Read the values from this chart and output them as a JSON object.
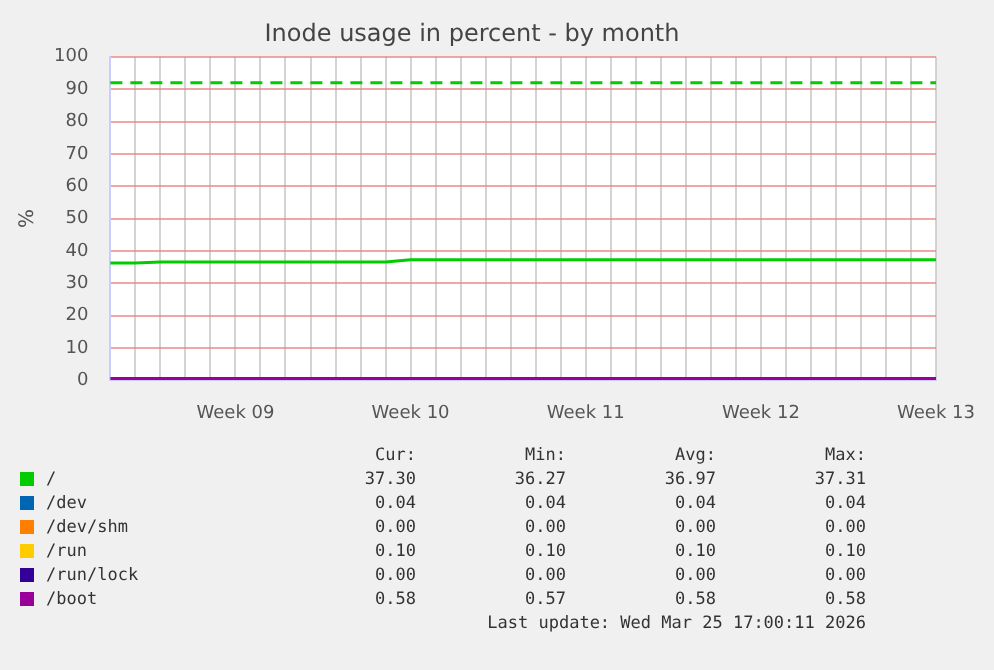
{
  "chart_data": {
    "type": "line",
    "title": "Inode usage in percent - by month",
    "ylabel": "%",
    "categories": [
      null,
      null,
      null,
      null,
      null,
      "Week 09",
      null,
      null,
      null,
      null,
      null,
      null,
      "Week 10",
      null,
      null,
      null,
      null,
      null,
      null,
      "Week 11",
      null,
      null,
      null,
      null,
      null,
      null,
      "Week 12",
      null,
      null,
      null,
      null,
      null,
      null,
      "Week 13"
    ],
    "ylim": [
      0,
      100
    ],
    "yticks": [
      0,
      10,
      20,
      30,
      40,
      50,
      60,
      70,
      80,
      90,
      100
    ],
    "grid": true,
    "legend": "bottom",
    "marker": "none",
    "line_style": "solid",
    "series": [
      {
        "name": "/",
        "color": "#00cc00",
        "values": [
          36.3,
          36.3,
          36.6,
          36.6,
          36.6,
          36.6,
          36.6,
          36.6,
          36.6,
          36.6,
          36.6,
          36.6,
          37.3,
          37.3,
          37.3,
          37.3,
          37.3,
          37.3,
          37.3,
          37.3,
          37.3,
          37.3,
          37.3,
          37.3,
          37.3,
          37.3,
          37.3,
          37.3,
          37.3,
          37.3,
          37.3,
          37.3,
          37.3,
          37.3
        ]
      },
      {
        "name": "/dev",
        "color": "#0066b3",
        "values": [
          null,
          null,
          null,
          null,
          null,
          null,
          null,
          null,
          null,
          null,
          null,
          null,
          null,
          null,
          null,
          null,
          null,
          null,
          null,
          null,
          null,
          null,
          null,
          null,
          null,
          null,
          null,
          null,
          null,
          null,
          null,
          null,
          null,
          null
        ]
      },
      {
        "name": "/dev/shm",
        "color": "#ff8000",
        "values": [
          null,
          null,
          null,
          null,
          null,
          null,
          null,
          null,
          null,
          null,
          null,
          null,
          null,
          null,
          null,
          null,
          null,
          null,
          null,
          null,
          null,
          null,
          null,
          null,
          null,
          null,
          null,
          null,
          null,
          null,
          null,
          null,
          null,
          null
        ]
      },
      {
        "name": "/run",
        "color": "#ffcc00",
        "values": [
          null,
          null,
          null,
          null,
          null,
          null,
          null,
          null,
          null,
          null,
          null,
          null,
          null,
          null,
          null,
          null,
          null,
          null,
          null,
          null,
          null,
          null,
          null,
          null,
          null,
          null,
          null,
          null,
          null,
          null,
          null,
          null,
          null,
          null
        ]
      },
      {
        "name": "/run/lock",
        "color": "#330099",
        "values": [
          null,
          null,
          null,
          null,
          null,
          null,
          null,
          null,
          null,
          null,
          null,
          null,
          null,
          null,
          null,
          null,
          null,
          null,
          null,
          null,
          null,
          null,
          null,
          null,
          null,
          null,
          null,
          null,
          null,
          null,
          null,
          null,
          null,
          null
        ]
      },
      {
        "name": "/boot",
        "color": "#990099",
        "values": [
          0.58,
          0.58,
          0.58,
          0.58,
          0.58,
          0.58,
          0.58,
          0.58,
          0.58,
          0.58,
          0.58,
          0.58,
          0.58,
          0.58,
          0.58,
          0.58,
          0.58,
          0.58,
          0.58,
          0.58,
          0.58,
          0.58,
          0.58,
          0.58,
          0.58,
          0.58,
          0.58,
          0.58,
          0.58,
          0.58,
          0.58,
          0.58,
          0.58,
          0.58
        ]
      }
    ],
    "ref_lines": [
      {
        "axis": "y",
        "value": 92,
        "label": null,
        "color": "#00cc00",
        "line_style": "dashed"
      }
    ],
    "annotations": [
      "Cur:",
      "Min:",
      "Avg:",
      "Max:",
      "37.30",
      "36.27",
      "36.97",
      "37.31",
      "0.04",
      "0.04",
      "0.04",
      "0.04",
      "0.00",
      "0.00",
      "0.00",
      "0.00",
      "0.10",
      "0.10",
      "0.10",
      "0.10",
      "0.00",
      "0.00",
      "0.00",
      "0.00",
      "0.58",
      "0.57",
      "0.58",
      "0.58",
      "Last update: Wed Mar 25 17:00:11 2026"
    ]
  }
}
